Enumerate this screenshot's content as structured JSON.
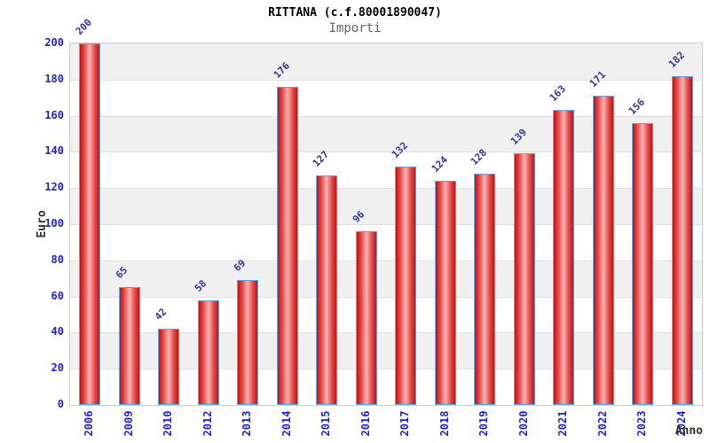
{
  "title": "RITTANA (c.f.80001890047)",
  "subtitle": "Importi",
  "chart_data": {
    "type": "bar",
    "title": "RITTANA (c.f.80001890047)",
    "subtitle": "Importi",
    "xlabel": "Anno",
    "ylabel": "Euro",
    "categories": [
      "2006",
      "2009",
      "2010",
      "2012",
      "2013",
      "2014",
      "2015",
      "2016",
      "2017",
      "2018",
      "2019",
      "2020",
      "2021",
      "2022",
      "2023",
      "2024"
    ],
    "values": [
      200,
      65,
      42,
      58,
      69,
      176,
      127,
      96,
      132,
      124,
      128,
      139,
      163,
      171,
      156,
      182
    ],
    "ylim": [
      0,
      200
    ],
    "ytick_step": 20,
    "ytick_labels": [
      "0",
      "20",
      "40",
      "60",
      "80",
      "100",
      "120",
      "140",
      "160",
      "180",
      "200"
    ],
    "grid": true,
    "legend_position": "none",
    "value_labels_shown": true,
    "colors": {
      "bar_edge": "#c41212",
      "bar_center": "#fbb2b2",
      "bar_border": "#66a3dc",
      "tick_label": "#2323cc",
      "value_label": "#333399",
      "band_stripe": "#f0f0f0",
      "gridline": "#e0e0e0",
      "plot_border": "#cccccc",
      "title": "#000000",
      "subtitle": "#666666",
      "axis_title": "#333333"
    }
  }
}
